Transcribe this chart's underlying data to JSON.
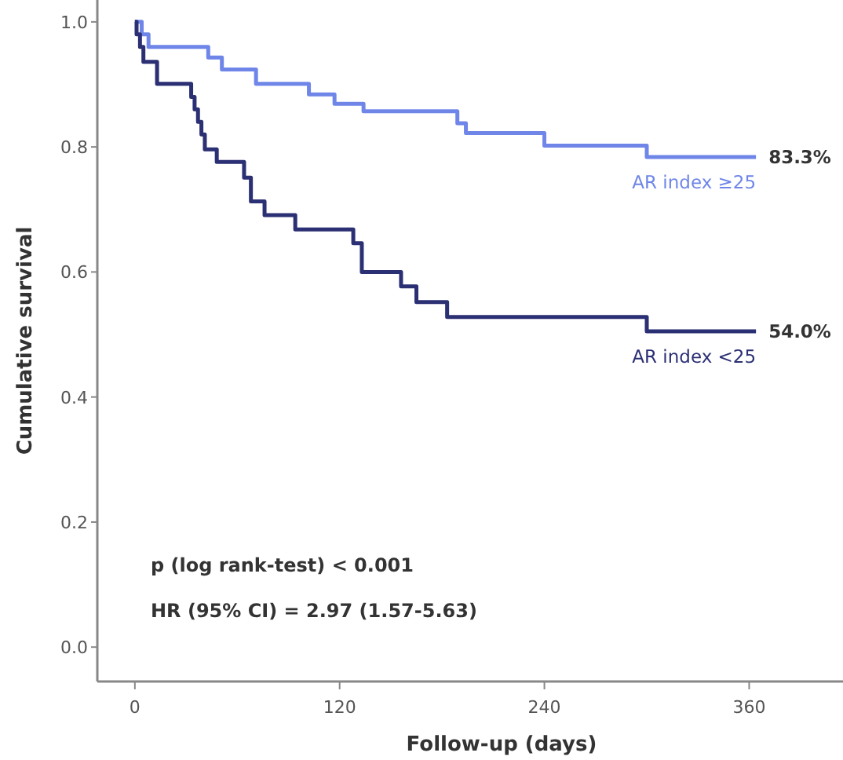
{
  "chart_data": {
    "type": "step",
    "xlabel": "Follow-up (days)",
    "ylabel": "Cumulative survival",
    "xlim": [
      -22,
      415
    ],
    "ylim": [
      -0.055,
      1.035
    ],
    "xticks": [
      0,
      120,
      240,
      360
    ],
    "yticks": [
      {
        "value": 0,
        "label": "0.0"
      },
      {
        "value": 0.2,
        "label": "0.2"
      },
      {
        "value": 0.4,
        "label": "0.4"
      },
      {
        "value": 0.6,
        "label": "0.6"
      },
      {
        "value": 0.8,
        "label": "0.8"
      },
      {
        "value": 1,
        "label": "1.0"
      }
    ],
    "series": [
      {
        "name": "AR index ≥25",
        "color": "#6f86e8",
        "x": [
          0,
          4,
          8,
          43,
          51,
          71,
          102,
          117,
          134,
          189,
          194,
          240,
          300,
          364
        ],
        "values": [
          1,
          0.98,
          0.96,
          0.943,
          0.924,
          0.901,
          0.884,
          0.869,
          0.857,
          0.838,
          0.822,
          0.802,
          0.784,
          0.784
        ]
      },
      {
        "name": "AR index <25",
        "color": "#2b2f73",
        "x": [
          0,
          1,
          3,
          5,
          13,
          33,
          35,
          37,
          39,
          41,
          48,
          64,
          68,
          76,
          94,
          128,
          133,
          156,
          165,
          183,
          300,
          364
        ],
        "values": [
          1,
          0.98,
          0.96,
          0.936,
          0.901,
          0.88,
          0.86,
          0.84,
          0.82,
          0.796,
          0.776,
          0.751,
          0.713,
          0.691,
          0.668,
          0.646,
          0.6,
          0.577,
          0.552,
          0.528,
          0.505,
          0.505
        ]
      }
    ],
    "annotations": [
      {
        "text": "83.3%",
        "x": 364,
        "y": 0.784
      },
      {
        "text": "54.0%",
        "x": 364,
        "y": 0.505
      },
      "p (log rank-test) < 0.001",
      "HR (95% CI) = 2.97 (1.57-5.63)"
    ]
  }
}
